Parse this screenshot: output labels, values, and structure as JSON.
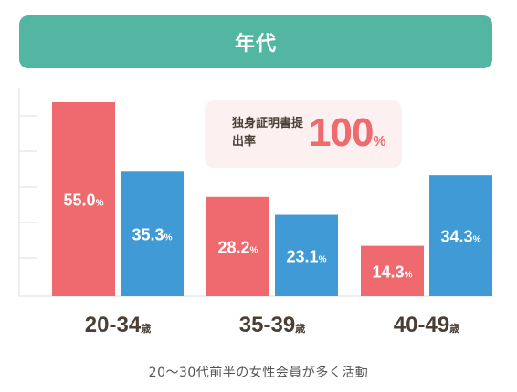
{
  "header": {
    "title": "年代"
  },
  "callout": {
    "label": "独身証明書提出率",
    "value": "100",
    "unit": "%"
  },
  "caption": "20〜30代前半の女性会員が多く活動",
  "colors": {
    "series_a": "#ef6a6e",
    "series_b": "#3f9ad6",
    "axis_text": "#4a3f35",
    "header": "#52b6a3"
  },
  "chart_data": {
    "type": "bar",
    "categories": [
      "20-34",
      "35-39",
      "40-49"
    ],
    "category_unit": "歳",
    "series": [
      {
        "values": [
          55.0,
          28.2,
          14.3
        ],
        "color": "#ef6a6e"
      },
      {
        "values": [
          35.3,
          23.1,
          34.3
        ],
        "color": "#3f9ad6"
      }
    ],
    "value_unit": "%",
    "ylim": [
      0,
      55
    ],
    "title": "",
    "xlabel": "",
    "ylabel": ""
  }
}
